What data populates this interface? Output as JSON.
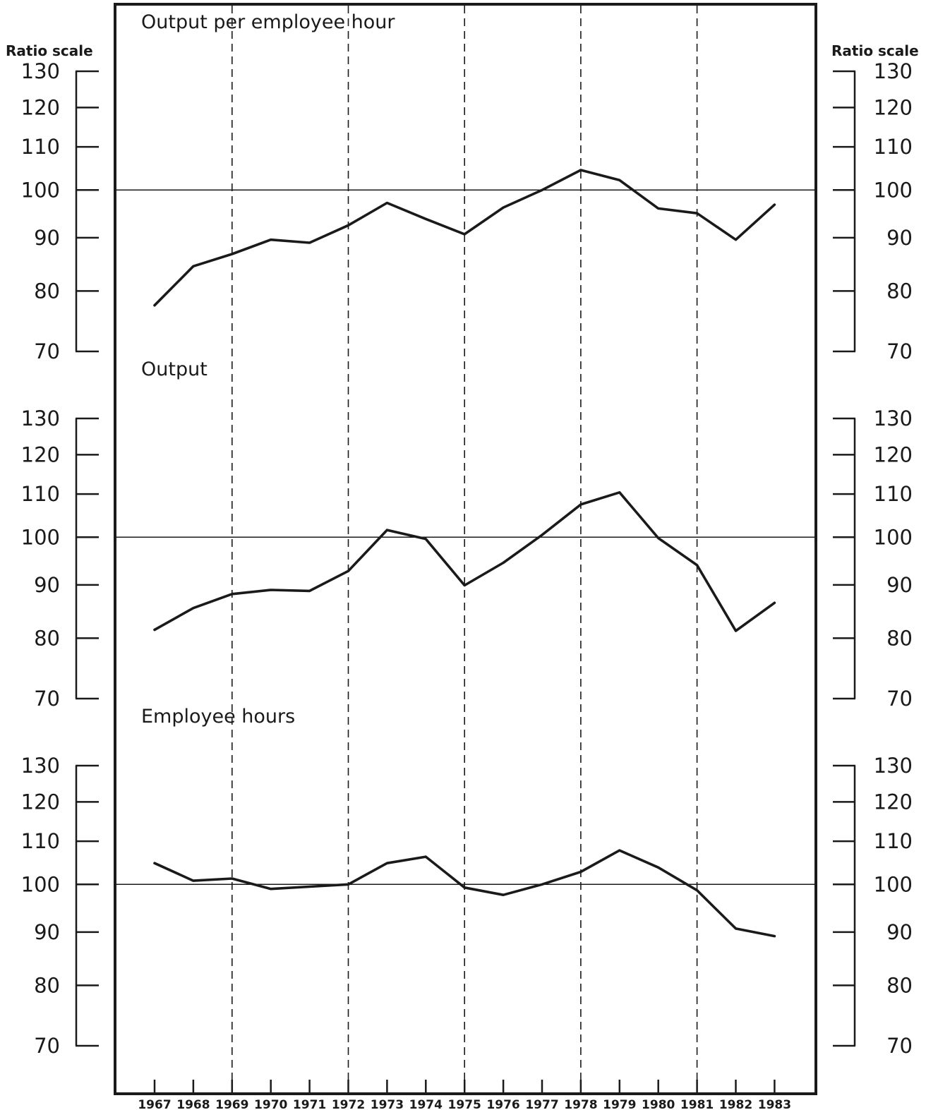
{
  "chart_data": {
    "type": "line",
    "scale": "log",
    "axis_caption": "Ratio scale",
    "x": [
      1967,
      1968,
      1969,
      1970,
      1971,
      1972,
      1973,
      1974,
      1975,
      1976,
      1977,
      1978,
      1979,
      1980,
      1981,
      1982,
      1983
    ],
    "x_tick_labels": [
      "1967",
      "1968",
      "1969",
      "1970",
      "1971",
      "1972",
      "1973",
      "1974",
      "1975",
      "1976",
      "1977",
      "1978",
      "1979",
      "1980",
      "1981",
      "1982",
      "1983"
    ],
    "y_ticks": [
      70,
      80,
      90,
      100,
      110,
      120,
      130
    ],
    "ylim": [
      70,
      130
    ],
    "reference_line": 100,
    "dashed_gridlines_at": [
      1969,
      1972,
      1975,
      1978,
      1981
    ],
    "panels": [
      {
        "title": "Output per employee hour",
        "values": [
          77.5,
          84.5,
          86.8,
          89.6,
          89.0,
          92.5,
          97.2,
          93.8,
          90.7,
          96.2,
          100.0,
          104.5,
          102.2,
          96.0,
          95.0,
          89.6,
          96.8
        ]
      },
      {
        "title": "Output",
        "values": [
          81.5,
          85.5,
          88.2,
          89.0,
          88.8,
          92.8,
          101.6,
          99.6,
          89.9,
          94.5,
          100.5,
          107.5,
          110.4,
          99.8,
          94.0,
          81.3,
          86.5
        ]
      },
      {
        "title": "Employee hours",
        "values": [
          104.8,
          100.8,
          101.3,
          99.0,
          99.5,
          100.0,
          104.8,
          106.3,
          99.3,
          97.7,
          100.0,
          102.8,
          107.8,
          103.8,
          98.7,
          90.7,
          89.2
        ]
      }
    ]
  }
}
